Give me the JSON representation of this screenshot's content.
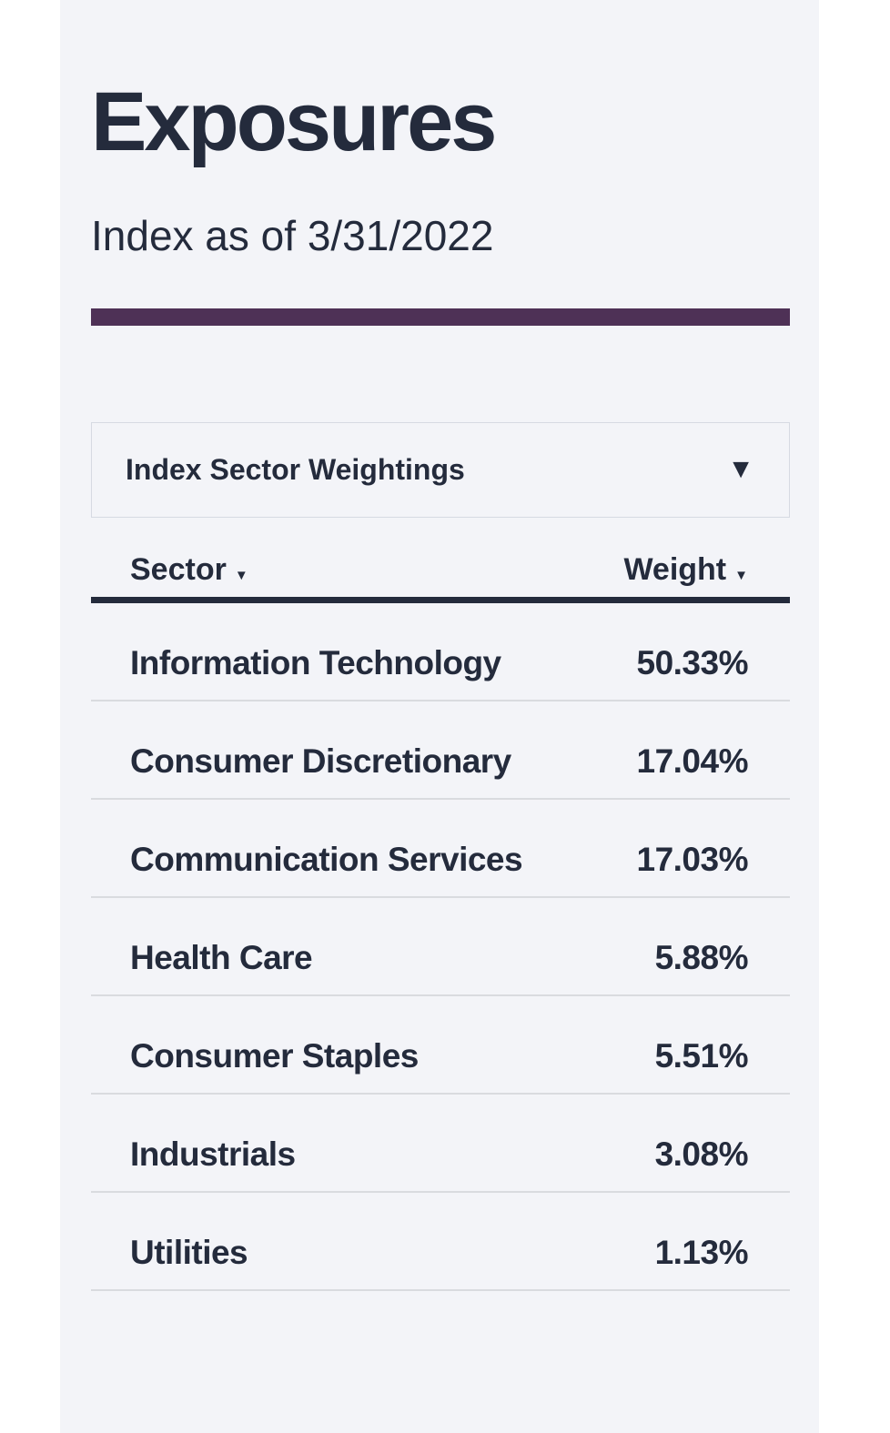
{
  "page": {
    "title": "Exposures",
    "subtitle": "Index as of 3/31/2022"
  },
  "colors": {
    "background_panel": "#f3f4f8",
    "text": "#242b3c",
    "accent_bar": "#4e3156",
    "row_divider": "#d9dbdf",
    "dropdown_border": "#d6dae2"
  },
  "dropdown": {
    "selected_option": "Index Sector Weightings",
    "caret": "▼"
  },
  "table": {
    "columns": [
      {
        "label": "Sector",
        "sort_caret": "▼"
      },
      {
        "label": "Weight",
        "sort_caret": "▼"
      }
    ],
    "rows": [
      {
        "sector": "Information Technology",
        "weight": "50.33%"
      },
      {
        "sector": "Consumer Discretionary",
        "weight": "17.04%"
      },
      {
        "sector": "Communication Services",
        "weight": "17.03%"
      },
      {
        "sector": "Health Care",
        "weight": "5.88%"
      },
      {
        "sector": "Consumer Staples",
        "weight": "5.51%"
      },
      {
        "sector": "Industrials",
        "weight": "3.08%"
      },
      {
        "sector": "Utilities",
        "weight": "1.13%"
      }
    ]
  }
}
